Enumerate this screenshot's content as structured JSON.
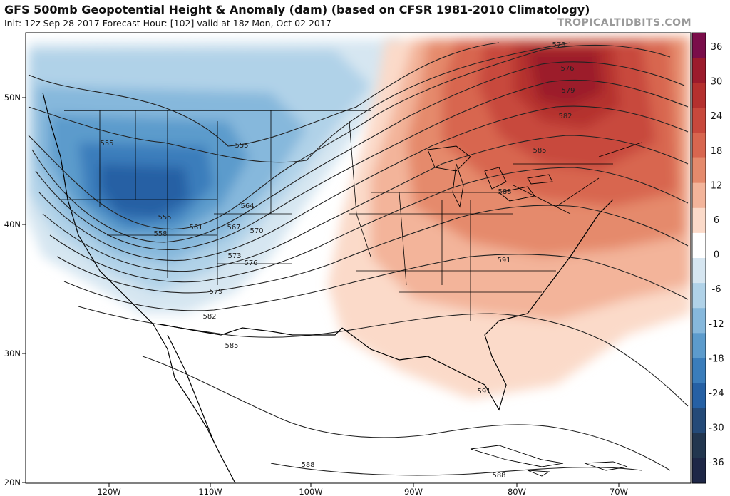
{
  "header": {
    "title": "GFS 500mb Geopotential Height & Anomaly (dam) (based on CFSR 1981-2010 Climatology)",
    "subtitle": "Init: 12z Sep 28 2017   Forecast Hour: [102]   valid at 18z Mon, Oct 02 2017",
    "brand": "TROPICALTIDBITS.COM"
  },
  "axes": {
    "lat_ticks": [
      "50N",
      "40N",
      "30N",
      "20N"
    ],
    "lon_ticks": [
      "120W",
      "110W",
      "100W",
      "90W",
      "80W",
      "70W"
    ]
  },
  "colorbar": {
    "tick_labels": [
      "36",
      "30",
      "24",
      "18",
      "12",
      "6",
      "0",
      "-6",
      "-12",
      "-18",
      "-24",
      "-30",
      "-36"
    ],
    "colors": [
      "#7a0d4a",
      "#9c1b2c",
      "#b5302e",
      "#c8483c",
      "#d8664f",
      "#e58a6c",
      "#f3b49a",
      "#fbdac9",
      "#ffffff",
      "#d6e6f1",
      "#b0d2e8",
      "#86b8dc",
      "#5c9bcc",
      "#3a7dbb",
      "#2560a4",
      "#244a78",
      "#22364f",
      "#1e2747"
    ]
  },
  "contours": {
    "labels": [
      "573",
      "576",
      "579",
      "582",
      "585",
      "588",
      "591",
      "591",
      "588",
      "588",
      "585",
      "582",
      "579",
      "576",
      "573",
      "570",
      "567",
      "564",
      "561",
      "558",
      "555",
      "555",
      "555"
    ]
  }
}
